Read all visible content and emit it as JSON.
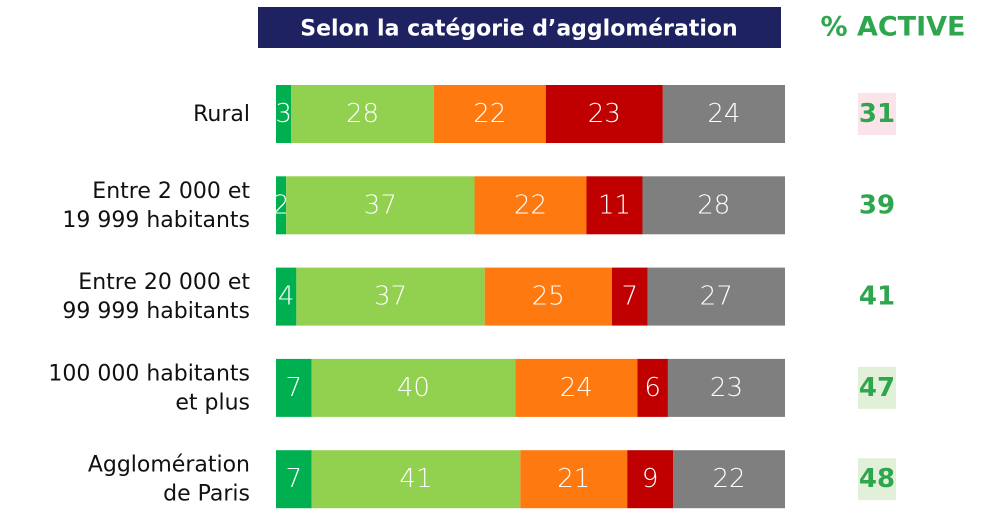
{
  "chart_data": {
    "type": "stacked-bar",
    "title": "Selon la catégorie d’agglomération",
    "categories": [
      [
        "Rural"
      ],
      [
        "Entre 2 000 et",
        "19 999 habitants"
      ],
      [
        "Entre 20 000 et",
        "99 999 habitants"
      ],
      [
        "100 000 habitants",
        "et plus"
      ],
      [
        "Agglomération",
        "de Paris"
      ]
    ],
    "xlim": [
      0,
      100
    ],
    "series": [
      {
        "color": "#00b050",
        "values": [
          3,
          2,
          4,
          7,
          7
        ]
      },
      {
        "color": "#92d050",
        "values": [
          28,
          37,
          37,
          40,
          41
        ]
      },
      {
        "color": "#fe7a10",
        "values": [
          22,
          22,
          25,
          24,
          21
        ]
      },
      {
        "color": "#c00000",
        "values": [
          23,
          11,
          7,
          6,
          9
        ]
      },
      {
        "color": "#7f7f7f",
        "values": [
          24,
          28,
          27,
          23,
          22
        ]
      }
    ],
    "active": {
      "title": "% ACTIVE",
      "color": "#2ea64e",
      "values": [
        31,
        39,
        41,
        47,
        48
      ],
      "highlight": [
        "#fbe4e9",
        null,
        null,
        "#e2f0d9",
        "#e2f0d9"
      ]
    }
  }
}
